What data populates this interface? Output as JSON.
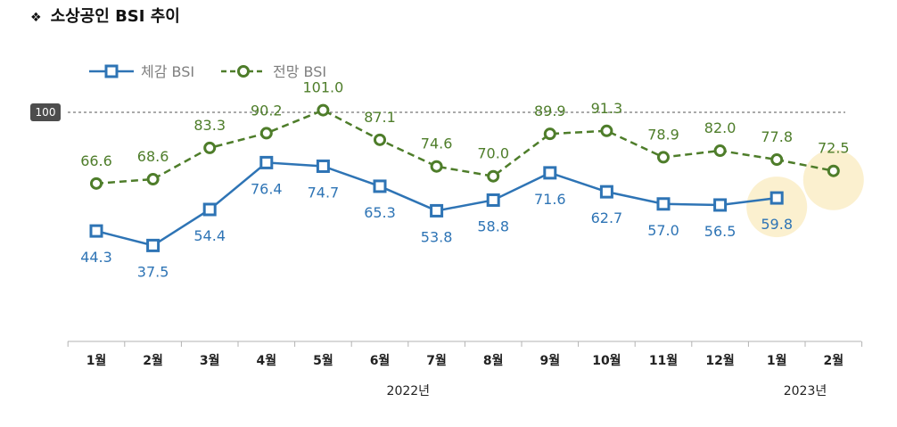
{
  "header": {
    "bullet": "❖",
    "title": "소상공인 BSI 추이"
  },
  "colors": {
    "current": "#2e74b5",
    "outlook": "#4e7d2a",
    "highlight": "#fbf0cf"
  },
  "chart_data": {
    "type": "line",
    "title": "소상공인 BSI 추이",
    "categories": [
      "1월",
      "2월",
      "3월",
      "4월",
      "5월",
      "6월",
      "7월",
      "8월",
      "9월",
      "10월",
      "11월",
      "12월",
      "1월",
      "2월"
    ],
    "year_labels": [
      "2022년",
      "2023년"
    ],
    "ylim": [
      30,
      105
    ],
    "reference_line": {
      "value": 100,
      "label": "100"
    },
    "legend_position": "top-left",
    "series": [
      {
        "name": "체감 BSI",
        "style": "solid",
        "marker": "square",
        "values": [
          44.3,
          37.5,
          54.4,
          76.4,
          74.7,
          65.3,
          53.8,
          58.8,
          71.6,
          62.7,
          57.0,
          56.5,
          59.8,
          null
        ]
      },
      {
        "name": "전망 BSI",
        "style": "dashed",
        "marker": "circle",
        "values": [
          66.6,
          68.6,
          83.3,
          90.2,
          101.0,
          87.1,
          74.6,
          70.0,
          89.9,
          91.3,
          78.9,
          82.0,
          77.8,
          72.5
        ]
      }
    ],
    "highlighted": [
      {
        "series": 0,
        "index": 12
      },
      {
        "series": 1,
        "index": 13
      }
    ]
  }
}
